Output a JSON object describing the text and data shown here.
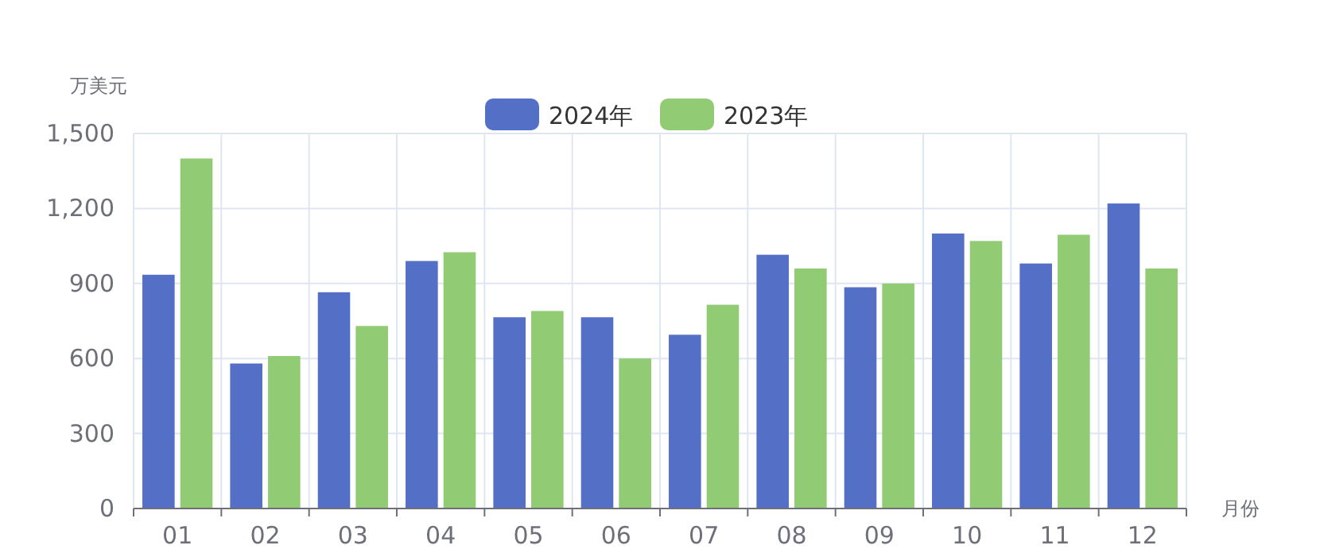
{
  "chart_data": {
    "type": "bar",
    "ylabel": "万美元",
    "xlabel": "月份",
    "categories": [
      "01",
      "02",
      "03",
      "04",
      "05",
      "06",
      "07",
      "08",
      "09",
      "10",
      "11",
      "12"
    ],
    "series": [
      {
        "name": "2024年",
        "color": "#5470c6",
        "values": [
          935,
          580,
          865,
          990,
          765,
          765,
          695,
          1015,
          885,
          1100,
          980,
          1220
        ]
      },
      {
        "name": "2023年",
        "color": "#91cc75",
        "values": [
          1400,
          610,
          730,
          1025,
          790,
          600,
          815,
          960,
          900,
          1070,
          1095,
          960
        ]
      }
    ],
    "ylim": [
      0,
      1500
    ],
    "yticks": [
      0,
      {
        "value": 300,
        "label": "300"
      },
      {
        "value": 600,
        "label": "600"
      },
      {
        "value": 900,
        "label": "900"
      },
      {
        "value": 1200,
        "label": "1,200"
      },
      {
        "value": 1500,
        "label": "1,500"
      }
    ],
    "grid": true,
    "legend": "top"
  }
}
